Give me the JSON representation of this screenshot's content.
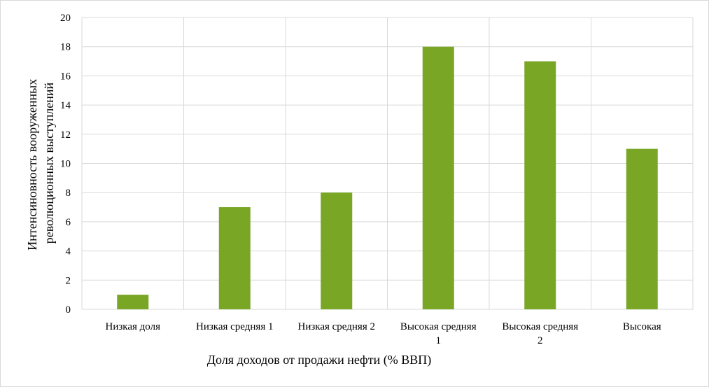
{
  "chart_data": {
    "type": "bar",
    "categories": [
      [
        "Низкая доля"
      ],
      [
        "Низкая средняя 1"
      ],
      [
        "Низкая средняя 2"
      ],
      [
        "Высокая средняя",
        "1"
      ],
      [
        "Высокая средняя",
        "2"
      ],
      [
        "Высокая"
      ]
    ],
    "values": [
      1,
      7,
      8,
      18,
      17,
      11
    ],
    "xlabel": "Доля доходов от продажи нефти (% ВВП)",
    "ylabel": [
      "Интенсиновность вооруженных",
      "революционных выступлений"
    ],
    "ylim": [
      0,
      20
    ],
    "yticks": [
      0,
      2,
      4,
      6,
      8,
      10,
      12,
      14,
      16,
      18,
      20
    ],
    "grid": true,
    "bar_color": "#7aa626",
    "grid_color": "#d9d9d9"
  }
}
